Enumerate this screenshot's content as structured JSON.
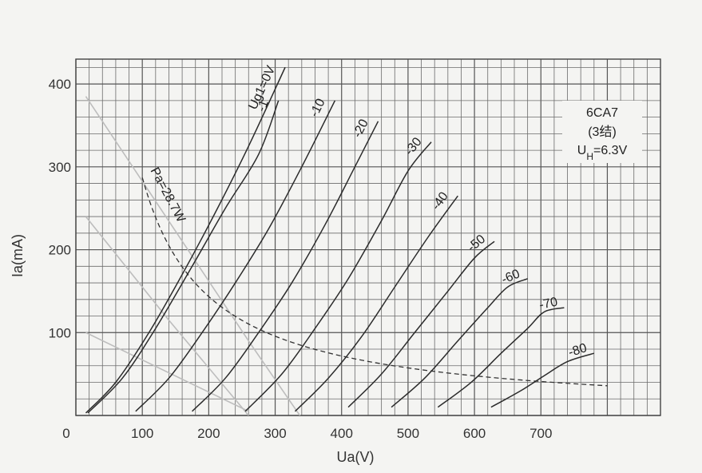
{
  "chart_data": {
    "type": "line",
    "title": "",
    "xlabel": "Ua(V)",
    "ylabel": "Ia(mA)",
    "xlim": [
      0,
      880
    ],
    "ylim": [
      0,
      430
    ],
    "x_ticks": [
      "0",
      "100",
      "200",
      "300",
      "400",
      "500",
      "600",
      "700"
    ],
    "x_tick_values": [
      0,
      100,
      200,
      300,
      400,
      500,
      600,
      700
    ],
    "y_ticks": [
      "100",
      "200",
      "300",
      "400"
    ],
    "y_tick_values": [
      100,
      200,
      300,
      400
    ],
    "grid": true,
    "info_box": {
      "line1": "6CA7",
      "line2": "(3结)",
      "line3_main": "U",
      "line3_sub": "H",
      "line3_rest": "=6.3V"
    },
    "series": [
      {
        "label": "Ug1=0V",
        "points": [
          [
            15,
            3
          ],
          [
            60,
            40
          ],
          [
            110,
            100
          ],
          [
            160,
            170
          ],
          [
            210,
            245
          ],
          [
            260,
            325
          ],
          [
            315,
            420
          ]
        ]
      },
      {
        "label": "-1",
        "points": [
          [
            18,
            3
          ],
          [
            70,
            45
          ],
          [
            120,
            105
          ],
          [
            175,
            180
          ],
          [
            225,
            250
          ],
          [
            275,
            315
          ],
          [
            305,
            380
          ]
        ]
      },
      {
        "label": "-10",
        "points": [
          [
            90,
            5
          ],
          [
            140,
            45
          ],
          [
            190,
            100
          ],
          [
            240,
            160
          ],
          [
            290,
            225
          ],
          [
            340,
            300
          ],
          [
            390,
            380
          ]
        ]
      },
      {
        "label": "-20",
        "points": [
          [
            175,
            5
          ],
          [
            225,
            45
          ],
          [
            275,
            100
          ],
          [
            325,
            160
          ],
          [
            375,
            230
          ],
          [
            420,
            300
          ],
          [
            455,
            355
          ]
        ]
      },
      {
        "label": "-30",
        "points": [
          [
            255,
            5
          ],
          [
            310,
            50
          ],
          [
            360,
            105
          ],
          [
            410,
            165
          ],
          [
            460,
            235
          ],
          [
            500,
            295
          ],
          [
            535,
            330
          ]
        ]
      },
      {
        "label": "-40",
        "points": [
          [
            330,
            5
          ],
          [
            380,
            45
          ],
          [
            430,
            95
          ],
          [
            480,
            155
          ],
          [
            530,
            215
          ],
          [
            575,
            265
          ]
        ]
      },
      {
        "label": "-50",
        "points": [
          [
            410,
            10
          ],
          [
            460,
            50
          ],
          [
            510,
            100
          ],
          [
            560,
            150
          ],
          [
            600,
            190
          ],
          [
            630,
            210
          ]
        ]
      },
      {
        "label": "-60",
        "points": [
          [
            475,
            10
          ],
          [
            525,
            45
          ],
          [
            575,
            90
          ],
          [
            620,
            130
          ],
          [
            650,
            155
          ],
          [
            680,
            165
          ]
        ]
      },
      {
        "label": "-70",
        "points": [
          [
            545,
            10
          ],
          [
            595,
            40
          ],
          [
            640,
            75
          ],
          [
            680,
            105
          ],
          [
            705,
            125
          ],
          [
            735,
            130
          ]
        ]
      },
      {
        "label": "-80",
        "points": [
          [
            625,
            10
          ],
          [
            670,
            30
          ],
          [
            705,
            48
          ],
          [
            740,
            65
          ],
          [
            780,
            75
          ]
        ]
      }
    ],
    "pa_curve": {
      "label": "Pa=28.7W",
      "watts": 28.7,
      "x_from": 100,
      "x_to": 800
    },
    "load_lines": [
      {
        "points": [
          [
            15,
            385
          ],
          [
            260,
            90
          ],
          [
            380,
            -50
          ]
        ]
      },
      {
        "points": [
          [
            15,
            240
          ],
          [
            140,
            115
          ],
          [
            260,
            0
          ]
        ]
      },
      {
        "points": [
          [
            15,
            100
          ],
          [
            260,
            5
          ]
        ]
      }
    ]
  }
}
